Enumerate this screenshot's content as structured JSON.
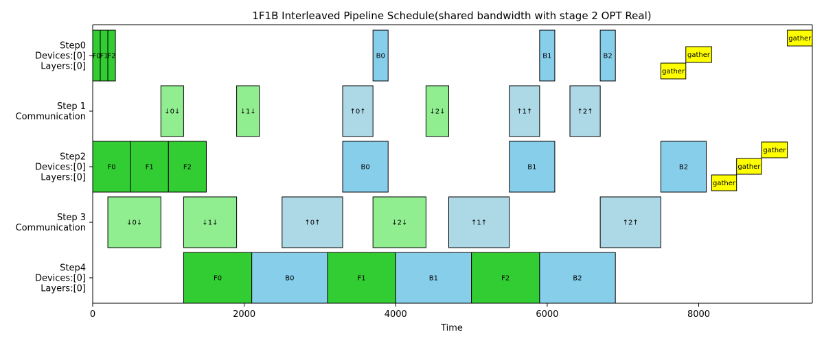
{
  "chart_data": {
    "type": "gantt",
    "title": "1F1B Interleaved Pipeline Schedule(shared bandwidth with stage 2 OPT Real)",
    "xlabel": "Time",
    "xlim": [
      0,
      9500
    ],
    "xticks": [
      0,
      2000,
      4000,
      6000,
      8000
    ],
    "xtick_labels": [
      "0",
      "2000",
      "4000",
      "6000",
      "8000"
    ],
    "colors": {
      "forward": "#32cd32",
      "backward": "#87ceeb",
      "comm_forward": "#90ee90",
      "comm_backward": "#add8e6",
      "gather": "#ffff00"
    },
    "rows": [
      {
        "key": "step0",
        "label_lines": [
          "Step0",
          "Devices:[0]",
          "Layers:[0]"
        ]
      },
      {
        "key": "step1",
        "label_lines": [
          "Step 1",
          "Communication"
        ]
      },
      {
        "key": "step2",
        "label_lines": [
          "Step2",
          "Devices:[0]",
          "Layers:[0]"
        ]
      },
      {
        "key": "step3",
        "label_lines": [
          "Step 3",
          "Communication"
        ]
      },
      {
        "key": "step4",
        "label_lines": [
          "Step4",
          "Devices:[0]",
          "Layers:[0]"
        ]
      }
    ],
    "tasks": [
      {
        "row": 0,
        "start": 0,
        "end": 100,
        "label": "F0",
        "kind": "forward"
      },
      {
        "row": 0,
        "start": 100,
        "end": 200,
        "label": "F1",
        "kind": "forward"
      },
      {
        "row": 0,
        "start": 200,
        "end": 300,
        "label": "F2",
        "kind": "forward"
      },
      {
        "row": 0,
        "start": 3700,
        "end": 3900,
        "label": "B0",
        "kind": "backward"
      },
      {
        "row": 0,
        "start": 5900,
        "end": 6100,
        "label": "B1",
        "kind": "backward"
      },
      {
        "row": 0,
        "start": 6700,
        "end": 6900,
        "label": "B2",
        "kind": "backward"
      },
      {
        "row": 0,
        "start": 7500,
        "end": 7830,
        "label": "gather",
        "kind": "gather",
        "level": 0
      },
      {
        "row": 0,
        "start": 7830,
        "end": 8170,
        "label": "gather",
        "kind": "gather",
        "level": 1
      },
      {
        "row": 0,
        "start": 9170,
        "end": 9500,
        "label": "gather",
        "kind": "gather",
        "level": 2
      },
      {
        "row": 1,
        "start": 900,
        "end": 1200,
        "label": "↓0↓",
        "kind": "comm_forward"
      },
      {
        "row": 1,
        "start": 1900,
        "end": 2200,
        "label": "↓1↓",
        "kind": "comm_forward"
      },
      {
        "row": 1,
        "start": 3300,
        "end": 3700,
        "label": "↑0↑",
        "kind": "comm_backward"
      },
      {
        "row": 1,
        "start": 4400,
        "end": 4700,
        "label": "↓2↓",
        "kind": "comm_forward"
      },
      {
        "row": 1,
        "start": 5500,
        "end": 5900,
        "label": "↑1↑",
        "kind": "comm_backward"
      },
      {
        "row": 1,
        "start": 6300,
        "end": 6700,
        "label": "↑2↑",
        "kind": "comm_backward"
      },
      {
        "row": 2,
        "start": 0,
        "end": 500,
        "label": "F0",
        "kind": "forward"
      },
      {
        "row": 2,
        "start": 500,
        "end": 1000,
        "label": "F1",
        "kind": "forward"
      },
      {
        "row": 2,
        "start": 1000,
        "end": 1500,
        "label": "F2",
        "kind": "forward"
      },
      {
        "row": 2,
        "start": 3300,
        "end": 3900,
        "label": "B0",
        "kind": "backward"
      },
      {
        "row": 2,
        "start": 5500,
        "end": 6100,
        "label": "B1",
        "kind": "backward"
      },
      {
        "row": 2,
        "start": 7500,
        "end": 8100,
        "label": "B2",
        "kind": "backward"
      },
      {
        "row": 2,
        "start": 8170,
        "end": 8500,
        "label": "gather",
        "kind": "gather",
        "level": 0
      },
      {
        "row": 2,
        "start": 8500,
        "end": 8830,
        "label": "gather",
        "kind": "gather",
        "level": 1
      },
      {
        "row": 2,
        "start": 8830,
        "end": 9170,
        "label": "gather",
        "kind": "gather",
        "level": 2
      },
      {
        "row": 3,
        "start": 200,
        "end": 900,
        "label": "↓0↓",
        "kind": "comm_forward"
      },
      {
        "row": 3,
        "start": 1200,
        "end": 1900,
        "label": "↓1↓",
        "kind": "comm_forward"
      },
      {
        "row": 3,
        "start": 2500,
        "end": 3300,
        "label": "↑0↑",
        "kind": "comm_backward"
      },
      {
        "row": 3,
        "start": 3700,
        "end": 4400,
        "label": "↓2↓",
        "kind": "comm_forward"
      },
      {
        "row": 3,
        "start": 4700,
        "end": 5500,
        "label": "↑1↑",
        "kind": "comm_backward"
      },
      {
        "row": 3,
        "start": 6700,
        "end": 7500,
        "label": "↑2↑",
        "kind": "comm_backward"
      },
      {
        "row": 4,
        "start": 1200,
        "end": 2100,
        "label": "F0",
        "kind": "forward"
      },
      {
        "row": 4,
        "start": 2100,
        "end": 3100,
        "label": "B0",
        "kind": "backward"
      },
      {
        "row": 4,
        "start": 3100,
        "end": 4000,
        "label": "F1",
        "kind": "forward"
      },
      {
        "row": 4,
        "start": 4000,
        "end": 5000,
        "label": "B1",
        "kind": "backward"
      },
      {
        "row": 4,
        "start": 5000,
        "end": 5900,
        "label": "F2",
        "kind": "forward"
      },
      {
        "row": 4,
        "start": 5900,
        "end": 6900,
        "label": "B2",
        "kind": "backward"
      }
    ]
  }
}
